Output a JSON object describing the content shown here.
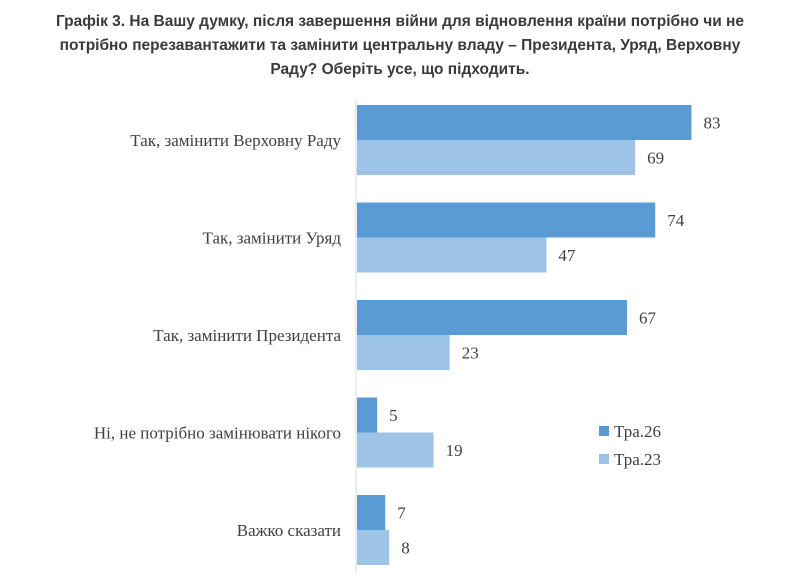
{
  "chart_data": {
    "type": "bar",
    "orientation": "horizontal",
    "title_lines": [
      "Графік 3. На Вашу думку, після завершення війни для відновлення країни потрібно чи не",
      "потрібно перезавантажити та замінити центральну владу – Президента, Уряд, Верховну",
      "Раду? Оберіть усе, що підходить."
    ],
    "categories": [
      "Так, замінити Верховну Раду",
      "Так, замінити Уряд",
      "Так, замінити Президента",
      "Ні, не потрібно замінювати нікого",
      "Важко сказати"
    ],
    "series": [
      {
        "name": "Тра.26",
        "color": "#5b9bd5",
        "values": [
          83,
          74,
          67,
          5,
          7
        ]
      },
      {
        "name": "Тра.23",
        "color": "#9dc3e6",
        "values": [
          69,
          47,
          23,
          19,
          8
        ]
      }
    ],
    "xlim": [
      0,
      100
    ],
    "legend_position": "right",
    "grid": false
  }
}
